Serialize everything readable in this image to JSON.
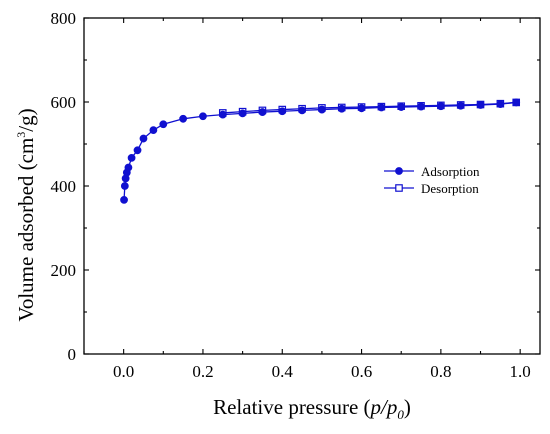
{
  "chart_data": {
    "type": "line",
    "xlabel": {
      "main": "Relative pressure (",
      "italic": "p/p",
      "sub": "0",
      "close": ")"
    },
    "ylabel": {
      "main": "Volume adsorbed (cm",
      "sup": "3",
      "close": "/g)"
    },
    "xlim": [
      -0.1,
      1.05
    ],
    "ylim": [
      0,
      800
    ],
    "xticks": [
      0.0,
      0.2,
      0.4,
      0.6,
      0.8,
      1.0
    ],
    "xtick_labels": [
      "0.0",
      "0.2",
      "0.4",
      "0.6",
      "0.8",
      "1.0"
    ],
    "yticks": [
      0,
      200,
      400,
      600,
      800
    ],
    "ytick_labels": [
      "0",
      "200",
      "400",
      "600",
      "800"
    ],
    "legend_position": "right",
    "grid": false,
    "series": [
      {
        "name": "Adsorption",
        "marker": "filled-circle",
        "color": "#1010d0",
        "x": [
          0.001,
          0.003,
          0.005,
          0.008,
          0.012,
          0.02,
          0.035,
          0.05,
          0.075,
          0.1,
          0.15,
          0.2,
          0.25,
          0.3,
          0.35,
          0.4,
          0.45,
          0.5,
          0.55,
          0.6,
          0.65,
          0.7,
          0.75,
          0.8,
          0.85,
          0.9,
          0.95,
          0.99
        ],
        "y": [
          367,
          400,
          418,
          432,
          444,
          467,
          485,
          513,
          533,
          547,
          560,
          566,
          570,
          573,
          576,
          578,
          580,
          582,
          584,
          585,
          587,
          588,
          589,
          590,
          591,
          593,
          595,
          599
        ]
      },
      {
        "name": "Desorption",
        "marker": "open-square",
        "color": "#1010d0",
        "x": [
          0.99,
          0.95,
          0.9,
          0.85,
          0.8,
          0.75,
          0.7,
          0.65,
          0.6,
          0.55,
          0.5,
          0.45,
          0.4,
          0.35,
          0.3,
          0.25
        ],
        "y": [
          599,
          596,
          594,
          593,
          592,
          591,
          590,
          589,
          588,
          587,
          586,
          584,
          582,
          580,
          577,
          574
        ]
      }
    ]
  }
}
